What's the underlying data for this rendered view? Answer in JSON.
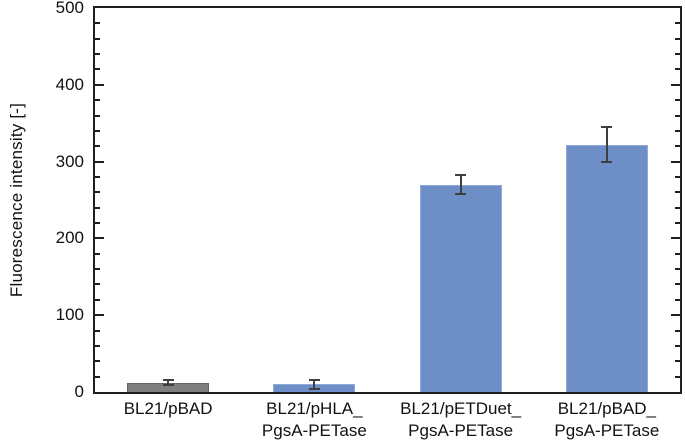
{
  "chart_data": {
    "type": "bar",
    "title": "",
    "xlabel": "",
    "ylabel": "Fluorescence intensity [-]",
    "ylim": [
      0,
      500
    ],
    "y_major_ticks": [
      0,
      100,
      200,
      300,
      400,
      500
    ],
    "y_minor_tick_interval": 20,
    "grid": false,
    "legend": false,
    "categories": [
      "BL21/pBAD",
      "BL21/pHLA_\nPgsA-PETase",
      "BL21/pETDuet_\nPgsA-PETase",
      "BL21/pBAD_\nPgsA-PETase"
    ],
    "values": [
      12,
      10,
      270,
      322
    ],
    "errors": [
      3,
      6,
      12,
      23
    ],
    "bar_fill_colors": [
      "#7F7F7F",
      "#6D8EC6",
      "#6D8EC6",
      "#6D8EC6"
    ],
    "bar_border_colors": [
      "#646464",
      "#8FA9D6",
      "#8FA9D6",
      "#8FA9D6"
    ],
    "error_bar_color": "#3F3F3F",
    "axis_color": "#1F1F1F",
    "background_color": "#FFFFFF"
  }
}
